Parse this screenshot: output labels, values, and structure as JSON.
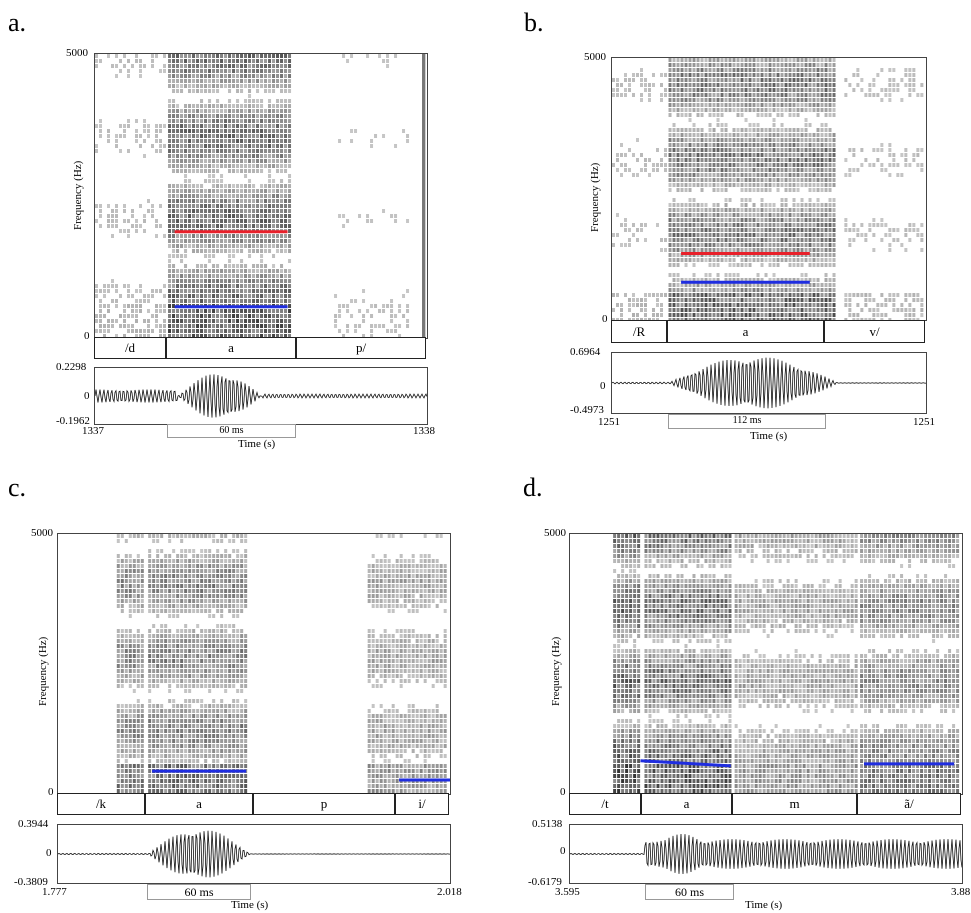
{
  "panels": [
    {
      "letter": "a.",
      "spec": {
        "ymax": "5000",
        "ymin": "0",
        "ylabel": "Frequency (Hz)"
      },
      "segments": [
        "/d",
        "a",
        "p/"
      ],
      "wave": {
        "max": "0.2298",
        "zero": "0",
        "min": "-0.1962"
      },
      "time": {
        "start": "1337",
        "end": "1338",
        "label": "Time (s)"
      },
      "duration": "60 ms",
      "formant_lines": [
        {
          "color": "#e8202a",
          "start_hz": 1870,
          "end_hz": 1870
        },
        {
          "color": "#1f2de0",
          "start_hz": 550,
          "end_hz": 550
        }
      ]
    },
    {
      "letter": "b.",
      "spec": {
        "ymax": "5000",
        "ymin": "0",
        "ylabel": "Frequency (Hz)"
      },
      "segments": [
        "/R",
        "a",
        "v/"
      ],
      "wave": {
        "max": "0.6964",
        "zero": "0",
        "min": "-0.4973"
      },
      "time": {
        "start": "1251",
        "end": "1251",
        "label": "Time (s)"
      },
      "duration": "112 ms",
      "formant_lines": [
        {
          "color": "#e8202a",
          "start_hz": 1270,
          "end_hz": 1270
        },
        {
          "color": "#1f2de0",
          "start_hz": 720,
          "end_hz": 720
        }
      ]
    },
    {
      "letter": "c.",
      "spec": {
        "ymax": "5000",
        "ymin": "0",
        "ylabel": "Frequency (Hz)"
      },
      "segments": [
        "/k",
        "a",
        "p",
        "i/"
      ],
      "wave": {
        "max": "0.3944",
        "zero": "0",
        "min": "-0.3809"
      },
      "time": {
        "start": "1.777",
        "end": "2.018",
        "label": "Time (s)"
      },
      "duration": "60 ms",
      "formant_lines": [
        {
          "color": "#1f2de0",
          "start_hz": 440,
          "end_hz": 440
        },
        {
          "color": "#1f2de0",
          "start_hz": 270,
          "end_hz": 270
        }
      ]
    },
    {
      "letter": "d.",
      "spec": {
        "ymax": "5000",
        "ymin": "0",
        "ylabel": "Frequency (Hz)"
      },
      "segments": [
        "/t",
        "a",
        "m",
        "ã/"
      ],
      "wave": {
        "max": "0.5138",
        "zero": "0",
        "min": "-0.6179"
      },
      "time": {
        "start": "3.595",
        "end": "3.88",
        "label": "Time (s)"
      },
      "duration": "60 ms",
      "formant_lines": [
        {
          "color": "#1f2de0",
          "start_hz": 640,
          "end_hz": 540
        },
        {
          "color": "#1f2de0",
          "start_hz": 580,
          "end_hz": 580
        }
      ]
    }
  ]
}
